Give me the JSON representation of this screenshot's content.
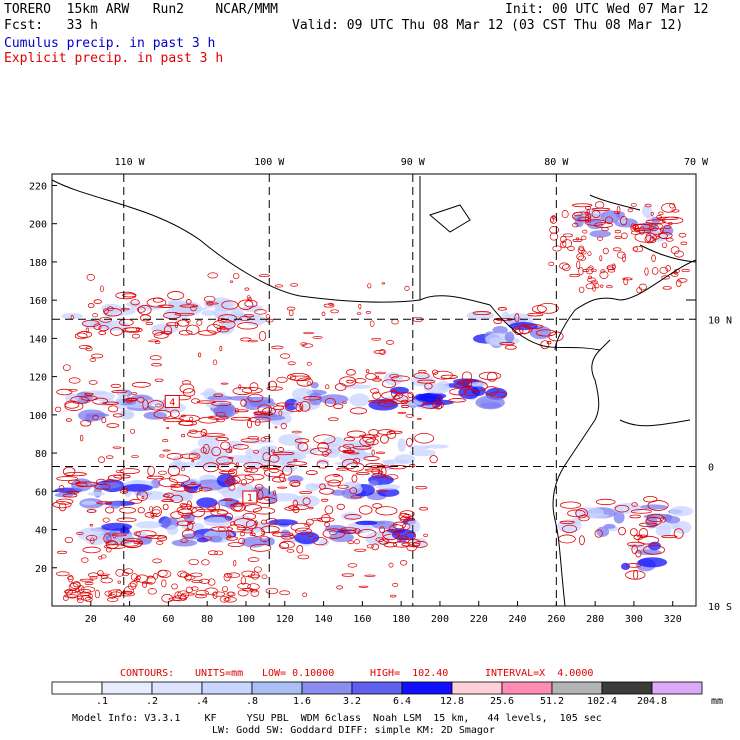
{
  "header": {
    "model": "TORERO  15km ARW   Run2    NCAR/MMM",
    "init": "Init: 00 UTC Wed 07 Mar 12",
    "fcst": "Fcst:   33 h",
    "valid": "Valid: 09 UTC Thu 08 Mar 12 (03 CST Thu 08 Mar 12)",
    "shaded_field": "Cumulus precip. in past 3 h",
    "contour_field": "Explicit precip. in past 3 h"
  },
  "colors": {
    "coast": "#000000",
    "contour": "#e00000",
    "shade_light": "#c8d4ff",
    "shade_mid": "#7b7bf0",
    "shade_dark": "#1010ff"
  },
  "chart_data": {
    "type": "heatmap",
    "x_grid_ticks": [
      "20",
      "40",
      "60",
      "80",
      "100",
      "120",
      "140",
      "160",
      "180",
      "200",
      "220",
      "240",
      "260",
      "280",
      "300",
      "320"
    ],
    "x_grid_tick_values": [
      20,
      40,
      60,
      80,
      100,
      120,
      140,
      160,
      180,
      200,
      220,
      240,
      260,
      280,
      300,
      320
    ],
    "y_grid_ticks": [
      "20",
      "40",
      "60",
      "80",
      "100",
      "120",
      "140",
      "160",
      "180",
      "200",
      "220"
    ],
    "y_grid_tick_values": [
      20,
      40,
      60,
      80,
      100,
      120,
      140,
      160,
      180,
      200,
      220
    ],
    "xlim": [
      0,
      332
    ],
    "ylim": [
      0,
      226
    ],
    "lon_labels": [
      "110 W",
      "100 W",
      "90 W",
      "80 W",
      "70 W"
    ],
    "lon_label_grid_x": [
      40,
      112,
      186,
      260,
      332
    ],
    "lat_labels": [
      "10 N",
      "0",
      "10 S"
    ],
    "lat_label_grid_y": [
      150,
      73,
      0
    ],
    "graticule_lon_grid_x": [
      37,
      112,
      186,
      260
    ],
    "graticule_lat_grid_y": [
      150,
      73
    ],
    "contour_markers": [
      {
        "label": "4",
        "x": 62,
        "y": 107
      },
      {
        "label": "1",
        "x": 102,
        "y": 57
      }
    ],
    "contour_info": {
      "contours": "CONTOURS:",
      "units": "UNITS=mm",
      "low": "LOW= 0.10000",
      "high": "HIGH=  102.40",
      "interval": "INTERVAL=X  4.0000"
    },
    "color_scale": {
      "bounds": [
        ".1",
        ".2",
        ".4",
        ".8",
        "1.6",
        "3.2",
        "6.4",
        "12.8",
        "25.6",
        "51.2",
        "102.4",
        "204.8"
      ],
      "unit": "mm",
      "colors": [
        "#ffffff",
        "#e8ecff",
        "#dde4ff",
        "#c8d6ff",
        "#aac0f4",
        "#8c8cf0",
        "#6060ee",
        "#1010ff",
        "#ffd0d8",
        "#ff8cb4",
        "#b4b4b4",
        "#3c3c3c",
        "#dcaaf8"
      ]
    },
    "precip_bands": [
      {
        "x0": 5,
        "x1": 175,
        "y": 60,
        "intensity": "high"
      },
      {
        "x0": 20,
        "x1": 190,
        "y": 40,
        "intensity": "high"
      },
      {
        "x0": 5,
        "x1": 120,
        "y": 105,
        "intensity": "mid"
      },
      {
        "x0": 120,
        "x1": 230,
        "y": 112,
        "intensity": "high"
      },
      {
        "x0": 10,
        "x1": 110,
        "y": 152,
        "intensity": "low"
      },
      {
        "x0": 60,
        "x1": 200,
        "y": 80,
        "intensity": "low"
      },
      {
        "x0": 220,
        "x1": 260,
        "y": 145,
        "intensity": "high"
      },
      {
        "x0": 270,
        "x1": 320,
        "y": 200,
        "intensity": "mid"
      },
      {
        "x0": 265,
        "x1": 325,
        "y": 45,
        "intensity": "mid"
      },
      {
        "x0": 295,
        "x1": 312,
        "y": 25,
        "intensity": "high"
      }
    ]
  },
  "footer": {
    "model_info": "Model Info: V3.3.1    KF     YSU PBL  WDM 6class  Noah LSM  15 km,   44 levels,  105 sec",
    "model_info2": "LW: Godd SW: Goddard DIFF: simple KM: 2D Smagor"
  }
}
